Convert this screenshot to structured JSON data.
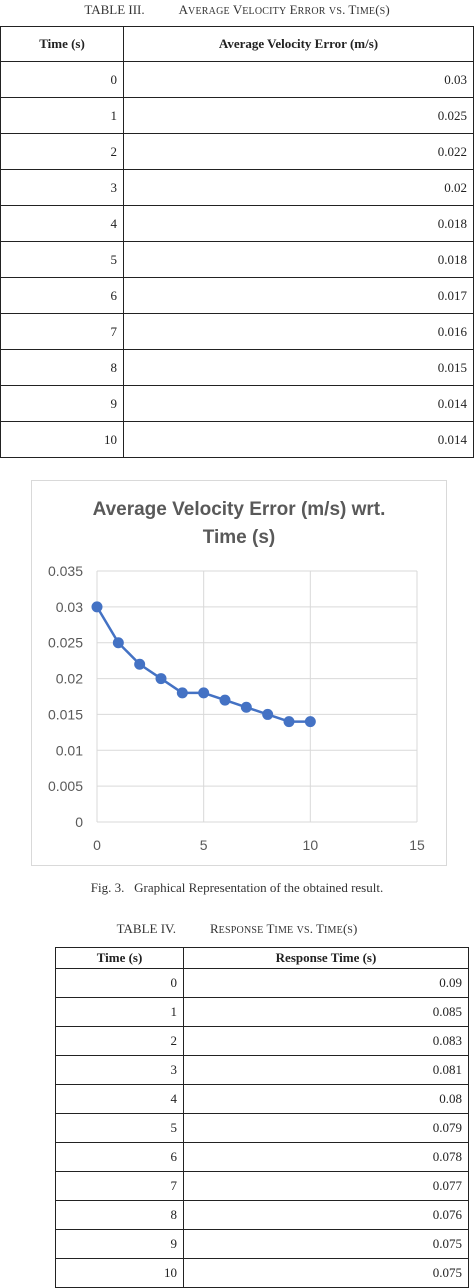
{
  "table3": {
    "caption_label": "TABLE III.",
    "caption_title": "Average Velocity Error vs. Time(s)",
    "headers": [
      "Time (s)",
      "Average Velocity Error (m/s)"
    ],
    "rows": [
      [
        "0",
        "0.03"
      ],
      [
        "1",
        "0.025"
      ],
      [
        "2",
        "0.022"
      ],
      [
        "3",
        "0.02"
      ],
      [
        "4",
        "0.018"
      ],
      [
        "5",
        "0.018"
      ],
      [
        "6",
        "0.017"
      ],
      [
        "7",
        "0.016"
      ],
      [
        "8",
        "0.015"
      ],
      [
        "9",
        "0.014"
      ],
      [
        "10",
        "0.014"
      ]
    ]
  },
  "figure": {
    "caption": "Fig. 3.   Graphical Representation of the obtained result."
  },
  "chart_data": {
    "type": "line",
    "title": "Average Velocity Error (m/s) wrt. Time (s)",
    "title_lines": [
      "Average Velocity Error (m/s) wrt.",
      "Time (s)"
    ],
    "x": [
      0,
      1,
      2,
      3,
      4,
      5,
      6,
      7,
      8,
      9,
      10
    ],
    "series": [
      {
        "values": [
          0.03,
          0.025,
          0.022,
          0.02,
          0.018,
          0.018,
          0.017,
          0.016,
          0.015,
          0.014,
          0.014
        ],
        "color": "#4472c4"
      }
    ],
    "xlim": [
      0,
      15
    ],
    "ylim": [
      0,
      0.035
    ],
    "xticks": [
      "0",
      "5",
      "10",
      "15"
    ],
    "yticks": [
      "0",
      "0.005",
      "0.01",
      "0.015",
      "0.02",
      "0.025",
      "0.03",
      "0.035"
    ],
    "grid": true,
    "xlabel": "",
    "ylabel": ""
  },
  "table4": {
    "caption_label": "TABLE IV.",
    "caption_title": "Response Time vs. Time(s)",
    "headers": [
      "Time (s)",
      "Response Time (s)"
    ],
    "rows": [
      [
        "0",
        "0.09"
      ],
      [
        "1",
        "0.085"
      ],
      [
        "2",
        "0.083"
      ],
      [
        "3",
        "0.081"
      ],
      [
        "4",
        "0.08"
      ],
      [
        "5",
        "0.079"
      ],
      [
        "6",
        "0.078"
      ],
      [
        "7",
        "0.077"
      ],
      [
        "8",
        "0.076"
      ],
      [
        "9",
        "0.075"
      ],
      [
        "10",
        "0.075"
      ]
    ]
  }
}
